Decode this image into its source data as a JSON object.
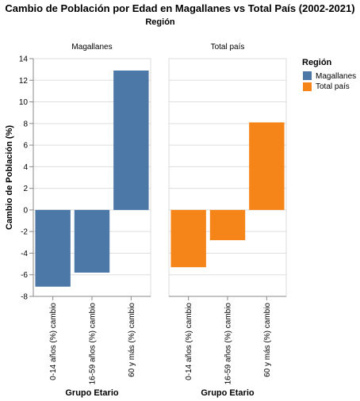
{
  "chart_data": {
    "type": "bar",
    "title": "Cambio de Población por Edad en Magallanes vs Total País (2002-2021)",
    "column_header": "Región",
    "xlabel": "Grupo Etario",
    "ylabel": "Cambio de Población (%)",
    "ylim": [
      -8,
      14
    ],
    "y_ticks": [
      -8,
      -6,
      -4,
      -2,
      0,
      2,
      4,
      6,
      8,
      10,
      12,
      14
    ],
    "categories": [
      "0-14 años (%) cambio",
      "16-59 años (%) cambio",
      "60 y más (%) cambio"
    ],
    "grid": true,
    "legend": {
      "title": "Región",
      "placement": "right",
      "entries": [
        {
          "name": "Magallanes",
          "color": "#4c78a8"
        },
        {
          "name": "Total país",
          "color": "#f58518"
        }
      ]
    },
    "series": [
      {
        "name": "Magallanes",
        "color": "#4c78a8",
        "values": [
          -7.1,
          -5.8,
          12.9
        ]
      },
      {
        "name": "Total país",
        "color": "#f58518",
        "values": [
          -5.3,
          -2.8,
          8.1
        ]
      }
    ]
  }
}
